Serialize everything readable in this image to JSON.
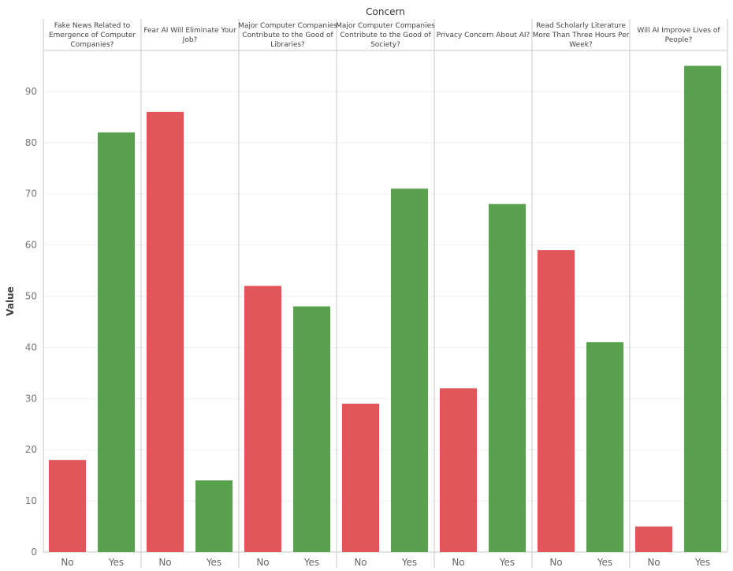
{
  "chart_data": {
    "type": "bar",
    "title": "Concern",
    "ylabel": "Value",
    "ylim": [
      0,
      98
    ],
    "yticks": [
      0,
      10,
      20,
      30,
      40,
      50,
      60,
      70,
      80,
      90
    ],
    "categories": [
      "No",
      "Yes"
    ],
    "colors": {
      "No": "#e15759",
      "Yes": "#59a14f"
    },
    "grid": true,
    "panels": [
      {
        "name": "Fake News Related to Emergence of Computer Companies?",
        "lines": [
          "Fake News Related to",
          "Emergence of Computer",
          "Companies?"
        ],
        "values": [
          18,
          82
        ]
      },
      {
        "name": "Fear AI Will Eliminate Your Job?",
        "lines": [
          "Fear AI Will Eliminate Your",
          "Job?"
        ],
        "values": [
          86,
          14
        ]
      },
      {
        "name": "Major Computer Companies Contribute to the Good of Libraries?",
        "lines": [
          "Major Computer Companies",
          "Contribute to the Good of",
          "Libraries?"
        ],
        "values": [
          52,
          48
        ]
      },
      {
        "name": "Major Computer Companies Contribute to the Good of Society?",
        "lines": [
          "Major Computer Companies",
          "Contribute to the Good of",
          "Society?"
        ],
        "values": [
          29,
          71
        ]
      },
      {
        "name": "Privacy Concern About AI?",
        "lines": [
          "Privacy Concern About AI?"
        ],
        "values": [
          32,
          68
        ]
      },
      {
        "name": "Read Scholarly Literature More Than Three Hours Per Week?",
        "lines": [
          "Read Scholarly Literature",
          "More Than Three Hours Per",
          "Week?"
        ],
        "values": [
          59,
          41
        ]
      },
      {
        "name": "Will AI Improve Lives of People?",
        "lines": [
          "Will AI Improve Lives of",
          "People?"
        ],
        "values": [
          5,
          95
        ]
      }
    ]
  }
}
